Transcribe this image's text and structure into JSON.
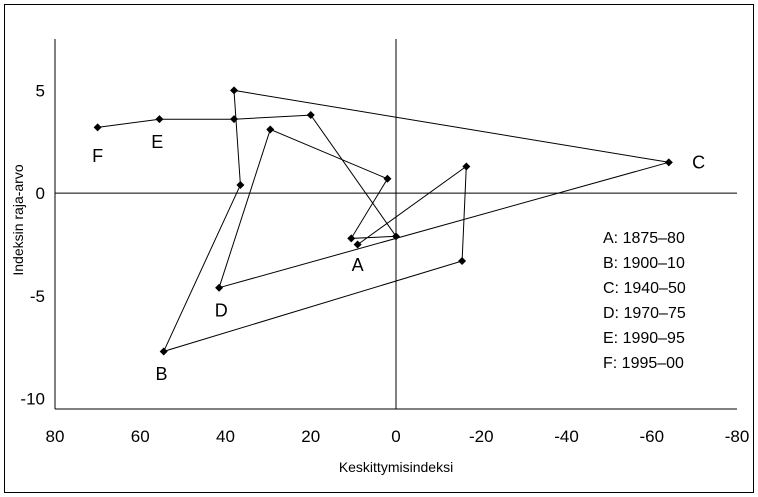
{
  "chart_data": {
    "type": "scatter",
    "xlabel": "Keskittymisindeksi",
    "ylabel": "Indeksin raja-arvo",
    "xlim": [
      80,
      -80
    ],
    "ylim": [
      -10.5,
      7.5
    ],
    "x_ticks": [
      80,
      60,
      40,
      20,
      0,
      -20,
      -40,
      -60,
      -80
    ],
    "y_ticks": [
      5,
      0,
      -5,
      -10
    ],
    "grid": false,
    "reference_lines": {
      "x": 0,
      "y": 0
    },
    "path": [
      {
        "x": 70,
        "y": 3.2
      },
      {
        "x": 55.5,
        "y": 3.6
      },
      {
        "x": 38,
        "y": 3.6
      },
      {
        "x": 20,
        "y": 3.8
      },
      {
        "x": 0,
        "y": -2.1
      },
      {
        "x": 10.5,
        "y": -2.2
      },
      {
        "x": 2,
        "y": 0.7
      },
      {
        "x": 29.5,
        "y": 3.1
      },
      {
        "x": 41.5,
        "y": -4.6
      },
      {
        "x": -64,
        "y": 1.5
      },
      {
        "x": 38,
        "y": 5.0
      },
      {
        "x": 36.5,
        "y": 0.4
      },
      {
        "x": 54.5,
        "y": -7.7
      },
      {
        "x": -15.5,
        "y": -3.3
      },
      {
        "x": -16.5,
        "y": 1.3
      },
      {
        "x": 9,
        "y": -2.5
      }
    ],
    "labels": [
      {
        "text": "A",
        "x": 9,
        "y": -3.5
      },
      {
        "text": "B",
        "x": 55,
        "y": -8.8
      },
      {
        "text": "C",
        "x": -71,
        "y": 1.5
      },
      {
        "text": "D",
        "x": 41,
        "y": -5.7
      },
      {
        "text": "E",
        "x": 56,
        "y": 2.5
      },
      {
        "text": "F",
        "x": 70,
        "y": 1.8
      }
    ],
    "legend": {
      "placement": "right",
      "entries": [
        "A:  1875–80",
        "B: 1900–10",
        "C: 1940–50",
        "D: 1970–75",
        "E: 1990–95",
        "F: 1995–00"
      ]
    },
    "colors": {
      "line": "#000000",
      "marker": "#000000"
    }
  }
}
